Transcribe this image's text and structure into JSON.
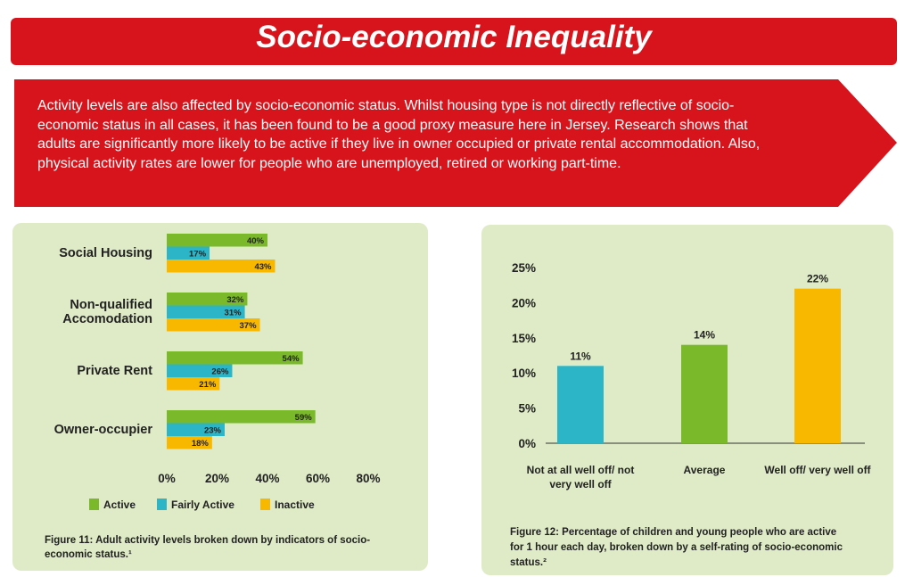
{
  "header": {
    "title": "Socio-economic Inequality",
    "body": "Activity levels are also affected by socio-economic status. Whilst housing type is not directly reflective of socio-economic status in all cases, it has been found to be a good proxy measure here in Jersey. Research shows that adults are significantly more likely to be active if they live in owner occupied or private rental accommodation. Also, physical activity rates are lower for people who are unemployed, retired or working part-time."
  },
  "chart_data": [
    {
      "type": "hbar",
      "categories": [
        "Social Housing",
        "Non-qualified Accomodation",
        "Private Rent",
        "Owner-occupier"
      ],
      "series": [
        {
          "name": "Active",
          "color": "#7ab929",
          "values": [
            40,
            32,
            54,
            59
          ],
          "value_labels": [
            "40%",
            "32%",
            "54%",
            "59%"
          ]
        },
        {
          "name": "Fairly Active",
          "color": "#2bb5c6",
          "values": [
            17,
            31,
            26,
            23
          ],
          "value_labels": [
            "17%",
            "31%",
            "26%",
            "23%"
          ]
        },
        {
          "name": "Inactive",
          "color": "#f9b800",
          "values": [
            43,
            37,
            21,
            18
          ],
          "value_labels": [
            "43%",
            "37%",
            "21%",
            "18%"
          ]
        }
      ],
      "xlim": [
        0,
        80
      ],
      "xticks": [
        {
          "value": 0,
          "label": "0%"
        },
        {
          "value": 20,
          "label": "20%"
        },
        {
          "value": 40,
          "label": "40%"
        },
        {
          "value": 60,
          "label": "60%"
        },
        {
          "value": 80,
          "label": "80%"
        }
      ],
      "caption": "Figure 11: Adult activity levels broken down by indicators of socio-economic status.¹"
    },
    {
      "type": "bar",
      "categories": [
        "Not at all well off/ not very well off",
        "Average",
        "Well off/ very well off"
      ],
      "values": [
        11,
        14,
        22
      ],
      "value_labels": [
        "11%",
        "14%",
        "22%"
      ],
      "colors": [
        "#2bb5c6",
        "#7ab929",
        "#f9b800"
      ],
      "ylim": [
        0,
        25
      ],
      "yticks": [
        {
          "value": 0,
          "label": "0%"
        },
        {
          "value": 5,
          "label": "5%"
        },
        {
          "value": 10,
          "label": "10%"
        },
        {
          "value": 15,
          "label": "15%"
        },
        {
          "value": 20,
          "label": "20%"
        },
        {
          "value": 25,
          "label": "25%"
        }
      ],
      "caption": "Figure 12: Percentage of children and young people who are active for 1 hour each day, broken down by a self-rating of socio-economic status.²"
    }
  ]
}
